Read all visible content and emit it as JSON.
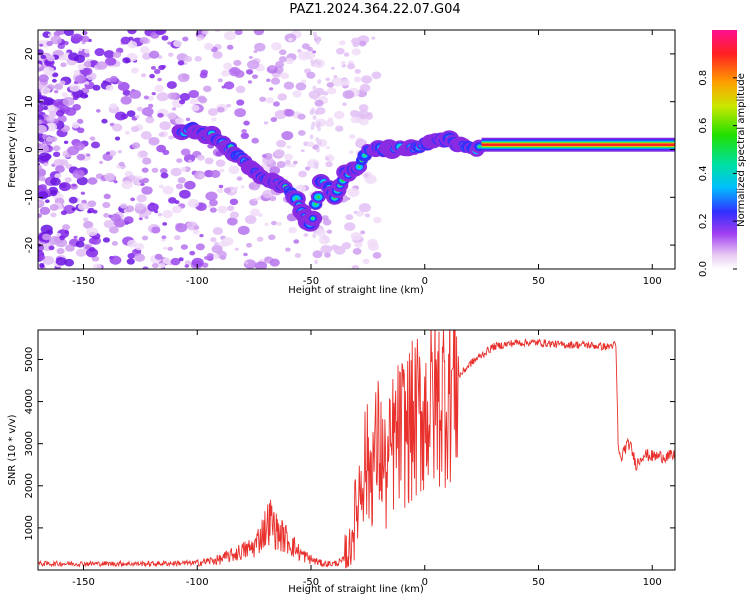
{
  "title": "PAZ1.2024.364.22.07.G04",
  "chart_data": [
    {
      "type": "heatmap",
      "xlabel": "Height of straight line (km)",
      "ylabel": "Frequency (Hz)",
      "xlim": [
        -170,
        110
      ],
      "ylim": [
        -25,
        25
      ],
      "xticks": [
        -150,
        -100,
        -50,
        0,
        50,
        100
      ],
      "yticks": [
        -20,
        -10,
        0,
        10,
        20
      ],
      "colorbar": {
        "label": "Normalized spectral amplitude",
        "range": [
          0,
          1
        ],
        "ticks": [
          0.0,
          0.2,
          0.4,
          0.6,
          0.8
        ]
      },
      "ridge": {
        "x": [
          -108,
          -100,
          -90,
          -80,
          -70,
          -60,
          -55,
          -50,
          -45,
          -40,
          -35,
          -30,
          -25,
          -20,
          -10,
          0,
          10,
          20,
          30,
          50,
          80,
          90,
          110
        ],
        "y": [
          4,
          4,
          2,
          -2,
          -6,
          -8,
          -12,
          -16,
          -6,
          -10,
          -5,
          -4,
          0,
          0,
          0,
          1,
          2,
          0,
          1,
          1,
          1,
          1,
          1
        ]
      }
    },
    {
      "type": "line",
      "xlabel": "Height of straight line (km)",
      "ylabel": "SNR (10 * v/v)",
      "xlim": [
        -170,
        110
      ],
      "ylim": [
        0,
        5700
      ],
      "xticks": [
        -150,
        -100,
        -50,
        0,
        50,
        100
      ],
      "yticks": [
        1000,
        2000,
        3000,
        4000,
        5000
      ],
      "series": [
        {
          "color": "#e8302c",
          "x": [
            -170,
            -150,
            -120,
            -100,
            -90,
            -80,
            -75,
            -68,
            -65,
            -60,
            -55,
            -50,
            -45,
            -40,
            -36,
            -33,
            -30,
            -27,
            -24,
            -20,
            -17,
            -14,
            -10,
            -5,
            0,
            5,
            10,
            15,
            20,
            25,
            30,
            40,
            50,
            60,
            70,
            80,
            84,
            85,
            86,
            88,
            90,
            93,
            96,
            100,
            110
          ],
          "y": [
            150,
            150,
            150,
            170,
            250,
            450,
            550,
            1200,
            900,
            700,
            400,
            250,
            150,
            150,
            200,
            600,
            1400,
            2600,
            2400,
            3000,
            2200,
            3000,
            3300,
            3500,
            3800,
            4000,
            4300,
            4600,
            4900,
            5100,
            5300,
            5400,
            5400,
            5350,
            5350,
            5300,
            5350,
            3000,
            2600,
            2900,
            3000,
            2500,
            2750,
            2700,
            2700
          ]
        }
      ]
    }
  ]
}
